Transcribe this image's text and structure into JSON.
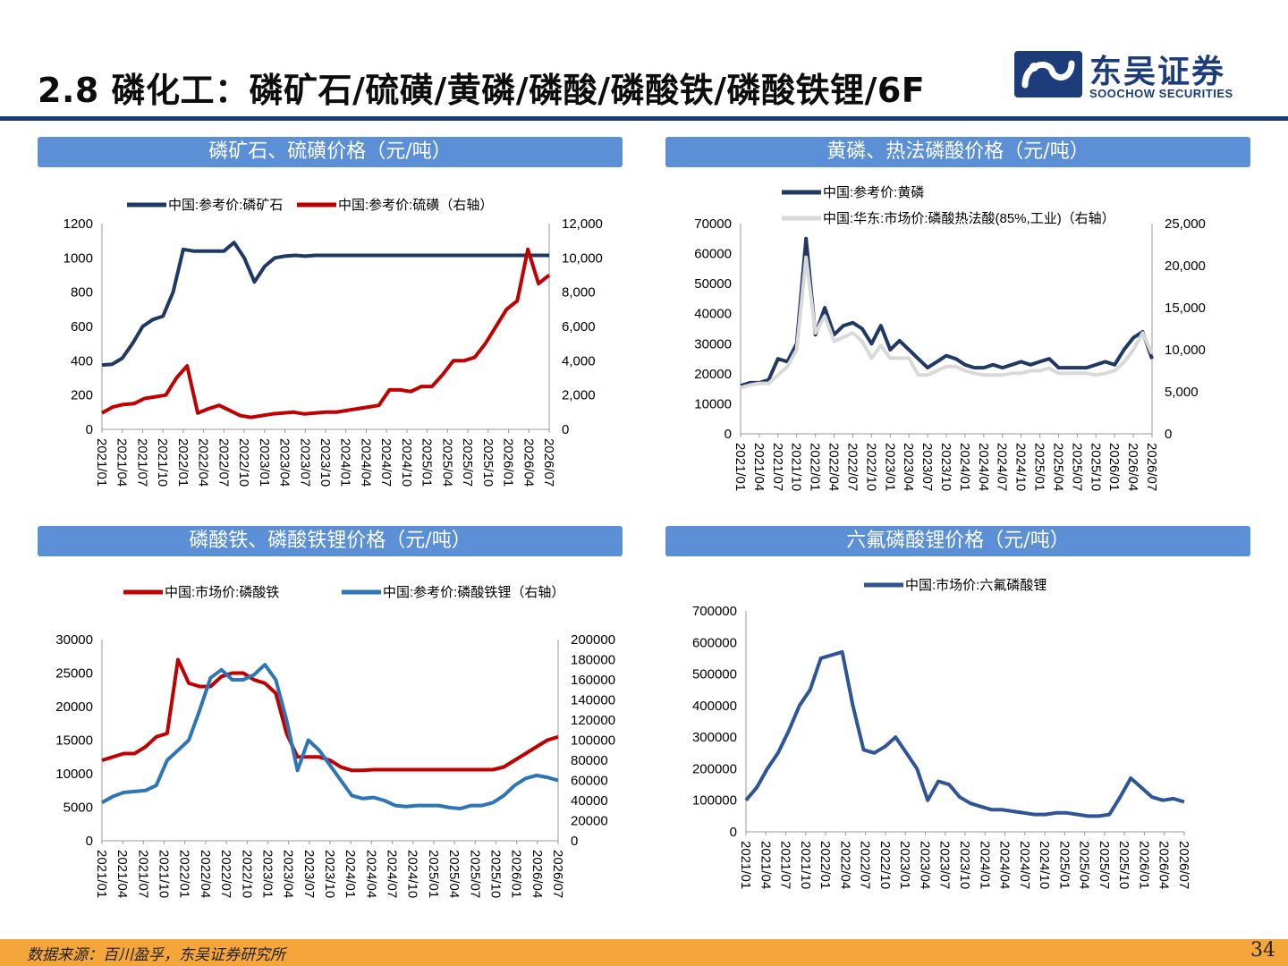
{
  "page": {
    "title": "2.8 磷化工：磷矿石/硫磺/黄磷/磷酸/磷酸铁/磷酸铁锂/6F",
    "logo_cn": "东吴证券",
    "logo_en": "SOOCHOW SECURITIES",
    "source": "数据来源：百川盈孚，东吴证券研究所",
    "page_number": "34",
    "colors": {
      "header_line": "#1c3d7a",
      "section_bar": "#5b8fd6",
      "footer": "#f5a63a"
    }
  },
  "panels": [
    {
      "id": "c1",
      "bar_title": "磷矿石、硫磺价格（元/吨）"
    },
    {
      "id": "c2",
      "bar_title": "黄磷、热法磷酸价格（元/吨）"
    },
    {
      "id": "c3",
      "bar_title": "磷酸铁、磷酸铁锂价格（元/吨）"
    },
    {
      "id": "c4",
      "bar_title": "六氟磷酸锂价格（元/吨）"
    }
  ],
  "chart_data": [
    {
      "type": "line",
      "title": "",
      "x_labels": [
        "2021/01",
        "2021/04",
        "2021/07",
        "2021/10",
        "2022/01",
        "2022/04",
        "2022/07",
        "2022/10",
        "2023/01",
        "2023/04",
        "2023/07",
        "2023/10",
        "2024/01",
        "2024/04",
        "2024/07",
        "2024/10",
        "2025/01",
        "2025/04",
        "2025/07",
        "2025/10",
        "2026/01",
        "2026/04",
        "2026/07"
      ],
      "y_left": {
        "min": 0,
        "max": 1200,
        "ticks": [
          "0",
          "200",
          "400",
          "600",
          "800",
          "1000",
          "1200"
        ]
      },
      "y_right": {
        "min": 0,
        "max": 12000,
        "ticks": [
          "0",
          "2,000",
          "4,000",
          "6,000",
          "8,000",
          "10,000",
          "12,000"
        ]
      },
      "legend_position": "top",
      "series": [
        {
          "name": "中国:参考价:磷矿石",
          "axis": "left",
          "color": "#1f3864",
          "values": [
            375,
            380,
            415,
            500,
            600,
            640,
            660,
            800,
            1050,
            1040,
            1040,
            1040,
            1040,
            1090,
            1000,
            860,
            950,
            1000,
            1010,
            1015,
            1010,
            1015,
            1015,
            1015,
            1015,
            1015,
            1015,
            1015,
            1015,
            1015,
            1015,
            1015,
            1015,
            1015,
            1015,
            1015,
            1015,
            1015,
            1015,
            1015,
            1015,
            1015,
            1015,
            1015,
            1015
          ]
        },
        {
          "name": "中国:参考价:硫磺（右轴）",
          "axis": "right",
          "color": "#c00000",
          "values": [
            950,
            1300,
            1450,
            1500,
            1800,
            1900,
            2000,
            3000,
            3700,
            950,
            1200,
            1400,
            1100,
            800,
            700,
            800,
            900,
            950,
            1000,
            900,
            950,
            1000,
            1000,
            1100,
            1200,
            1300,
            1400,
            2300,
            2300,
            2200,
            2500,
            2500,
            3200,
            4000,
            4000,
            4200,
            5000,
            6000,
            7000,
            7500,
            10500,
            8500,
            9000
          ]
        }
      ]
    },
    {
      "type": "line",
      "title": "",
      "x_labels": [
        "2021/01",
        "2021/04",
        "2021/07",
        "2021/10",
        "2022/01",
        "2022/04",
        "2022/07",
        "2022/10",
        "2023/01",
        "2023/04",
        "2023/07",
        "2023/10",
        "2024/01",
        "2024/04",
        "2024/07",
        "2024/10",
        "2025/01",
        "2025/04",
        "2025/07",
        "2025/10",
        "2026/01",
        "2026/04",
        "2026/07"
      ],
      "y_left": {
        "min": 0,
        "max": 70000,
        "ticks": [
          "0",
          "10000",
          "20000",
          "30000",
          "40000",
          "50000",
          "60000",
          "70000"
        ]
      },
      "y_right": {
        "min": 0,
        "max": 25000,
        "ticks": [
          "0",
          "5,000",
          "10,000",
          "15,000",
          "20,000",
          "25,000"
        ]
      },
      "legend_position": "top",
      "series": [
        {
          "name": "中国:参考价:黄磷",
          "axis": "left",
          "color": "#1f3864",
          "values": [
            16000,
            17000,
            17000,
            18000,
            25000,
            24000,
            30000,
            65000,
            33000,
            42000,
            33000,
            36000,
            37000,
            35000,
            30000,
            36000,
            28000,
            31000,
            28000,
            25000,
            22000,
            24000,
            26000,
            25000,
            23000,
            22000,
            22000,
            23000,
            22000,
            23000,
            24000,
            23000,
            24000,
            25000,
            22000,
            22000,
            22000,
            22000,
            23000,
            24000,
            23000,
            28000,
            32000,
            34000,
            25000
          ]
        },
        {
          "name": "中国:华东:市场价:磷酸热法酸(85%,工业)（右轴）",
          "axis": "right",
          "color": "#d9d9d9",
          "values": [
            5500,
            5800,
            6000,
            6000,
            7000,
            8000,
            10000,
            21000,
            12000,
            14000,
            11000,
            11500,
            12000,
            11000,
            9000,
            10500,
            9000,
            9000,
            9000,
            7000,
            7000,
            7500,
            8000,
            8000,
            7500,
            7200,
            7000,
            7000,
            7000,
            7200,
            7200,
            7500,
            7500,
            7800,
            7200,
            7200,
            7200,
            7200,
            7000,
            7200,
            7500,
            8500,
            10000,
            12000,
            9500
          ]
        }
      ]
    },
    {
      "type": "line",
      "title": "",
      "x_labels": [
        "2021/01",
        "2021/04",
        "2021/07",
        "2021/10",
        "2022/01",
        "2022/04",
        "2022/07",
        "2022/10",
        "2023/01",
        "2023/04",
        "2023/07",
        "2023/10",
        "2024/01",
        "2024/04",
        "2024/07",
        "2024/10",
        "2025/01",
        "2025/04",
        "2025/07",
        "2025/10",
        "2026/01",
        "2026/04",
        "2026/07"
      ],
      "y_left": {
        "min": 0,
        "max": 30000,
        "ticks": [
          "0",
          "5000",
          "10000",
          "15000",
          "20000",
          "25000",
          "30000"
        ]
      },
      "y_right": {
        "min": 0,
        "max": 200000,
        "ticks": [
          "0",
          "20000",
          "40000",
          "60000",
          "80000",
          "100000",
          "120000",
          "140000",
          "160000",
          "180000",
          "200000"
        ]
      },
      "legend_position": "top",
      "series": [
        {
          "name": "中国:市场价:磷酸铁",
          "axis": "left",
          "color": "#c00000",
          "values": [
            12000,
            12500,
            13000,
            13000,
            14000,
            15500,
            16000,
            27000,
            23500,
            23000,
            23000,
            24500,
            25000,
            25000,
            24000,
            23500,
            22000,
            16000,
            12500,
            12500,
            12500,
            12000,
            11000,
            10500,
            10500,
            10600,
            10600,
            10600,
            10600,
            10600,
            10600,
            10600,
            10600,
            10600,
            10600,
            10600,
            10600,
            11000,
            12000,
            13000,
            14000,
            15000,
            15500
          ]
        },
        {
          "name": "中国:参考价:磷酸铁锂（右轴）",
          "axis": "right",
          "color": "#2e75b6",
          "values": [
            38000,
            44000,
            48000,
            49000,
            50000,
            55000,
            80000,
            90000,
            100000,
            130000,
            162000,
            170000,
            160000,
            160000,
            165000,
            175000,
            160000,
            120000,
            70000,
            100000,
            90000,
            75000,
            60000,
            45000,
            42000,
            43000,
            40000,
            35000,
            34000,
            35000,
            35000,
            35000,
            33000,
            32000,
            35000,
            35000,
            38000,
            45000,
            55000,
            62000,
            65000,
            63000,
            60000
          ]
        }
      ]
    },
    {
      "type": "line",
      "title": "",
      "x_labels": [
        "2021/01",
        "2021/04",
        "2021/07",
        "2021/10",
        "2022/01",
        "2022/04",
        "2022/07",
        "2022/10",
        "2023/01",
        "2023/04",
        "2023/07",
        "2023/10",
        "2024/01",
        "2024/04",
        "2024/07",
        "2024/10",
        "2025/01",
        "2025/04",
        "2025/07",
        "2025/10",
        "2026/01",
        "2026/04",
        "2026/07"
      ],
      "y_left": {
        "min": 0,
        "max": 700000,
        "ticks": [
          "0",
          "100000",
          "200000",
          "300000",
          "400000",
          "500000",
          "600000",
          "700000"
        ]
      },
      "legend_position": "top",
      "series": [
        {
          "name": "中国:市场价:六氟磷酸锂",
          "axis": "left",
          "color": "#2f5597",
          "values": [
            100000,
            140000,
            200000,
            250000,
            320000,
            400000,
            450000,
            550000,
            560000,
            570000,
            400000,
            260000,
            250000,
            270000,
            300000,
            250000,
            200000,
            100000,
            160000,
            150000,
            110000,
            90000,
            80000,
            70000,
            70000,
            65000,
            60000,
            55000,
            55000,
            60000,
            60000,
            55000,
            50000,
            50000,
            55000,
            110000,
            170000,
            140000,
            110000,
            100000,
            105000,
            95000
          ]
        }
      ]
    }
  ]
}
